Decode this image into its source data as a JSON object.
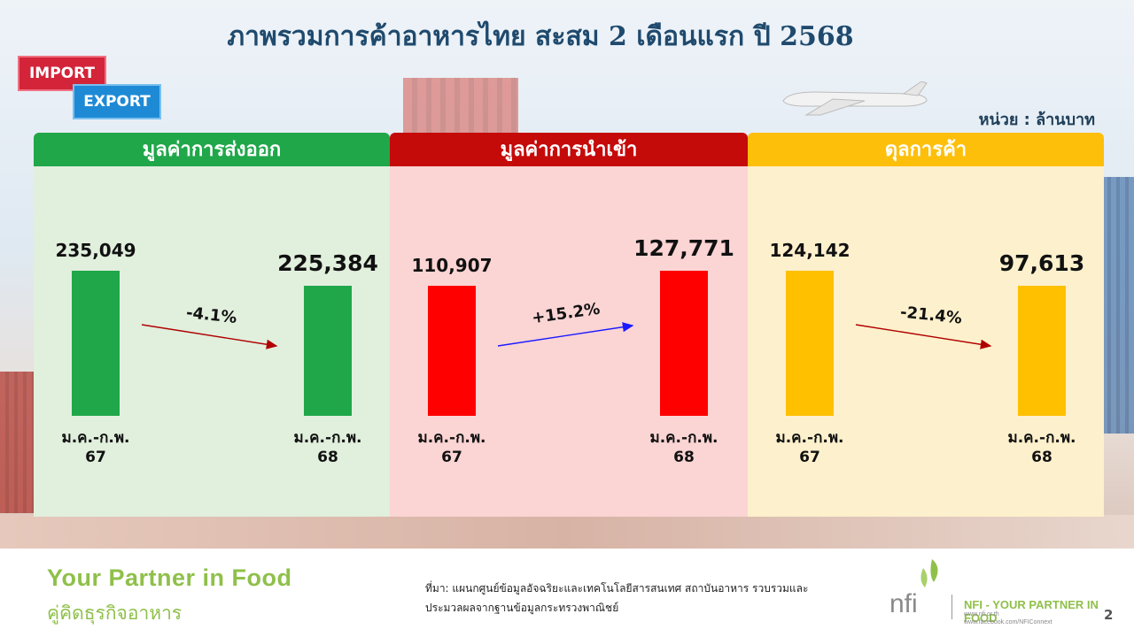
{
  "title": "ภาพรวมการค้าอาหารไทย สะสม 2 เดือนแรก ปี 2568",
  "tags": {
    "import": "IMPORT",
    "export": "EXPORT"
  },
  "unit": "หน่วย : ล้านบาท",
  "colors": {
    "export": "#20a74a",
    "import": "#ff0000",
    "balance": "#ffc000",
    "title": "#1f4a6e"
  },
  "chart_data": [
    {
      "type": "bar",
      "title": "มูลค่าการส่งออก",
      "categories": [
        "ม.ค.-ก.พ. 67",
        "ม.ค.-ก.พ. 68"
      ],
      "label_lines": [
        [
          "ม.ค.-ก.พ.",
          "67"
        ],
        [
          "ม.ค.-ก.พ.",
          "68"
        ]
      ],
      "values": [
        235049,
        225384
      ],
      "value_labels": [
        "235,049",
        "225,384"
      ],
      "change": "-4.1%",
      "color": "#20a74a",
      "arrow_color": "#b00000"
    },
    {
      "type": "bar",
      "title": "มูลค่าการนำเข้า",
      "categories": [
        "ม.ค.-ก.พ. 67",
        "ม.ค.-ก.พ. 68"
      ],
      "label_lines": [
        [
          "ม.ค.-ก.พ.",
          "67"
        ],
        [
          "ม.ค.-ก.พ.",
          "68"
        ]
      ],
      "values": [
        110907,
        127771
      ],
      "value_labels": [
        "110,907",
        "127,771"
      ],
      "change": "+15.2%",
      "color": "#ff0000",
      "arrow_color": "#1a1aff"
    },
    {
      "type": "bar",
      "title": "ดุลการค้า",
      "categories": [
        "ม.ค.-ก.พ. 67",
        "ม.ค.-ก.พ. 68"
      ],
      "label_lines": [
        [
          "ม.ค.-ก.พ.",
          "67"
        ],
        [
          "ม.ค.-ก.พ.",
          "68"
        ]
      ],
      "values": [
        124142,
        97613
      ],
      "value_labels": [
        "124,142",
        "97,613"
      ],
      "change": "-21.4%",
      "color": "#ffc000",
      "arrow_color": "#b00000"
    }
  ],
  "footer": {
    "slogan_en": "Your Partner in Food",
    "slogan_th": "คู่คิดธุรกิจอาหาร",
    "source_line1": "ที่มา: แผนกศูนย์ข้อมูลอัจฉริยะและเทคโนโลยีสารสนเทศ สถาบันอาหาร รวบรวมและ",
    "source_line2": "ประมวลผลจากฐานข้อมูลกระทรวงพาณิชย์",
    "logo_text": "NFI - YOUR PARTNER IN FOOD",
    "logo_url1": "www.nfi.or.th",
    "logo_url2": "www.facebook.com/NFIConnext",
    "page_number": "2"
  }
}
